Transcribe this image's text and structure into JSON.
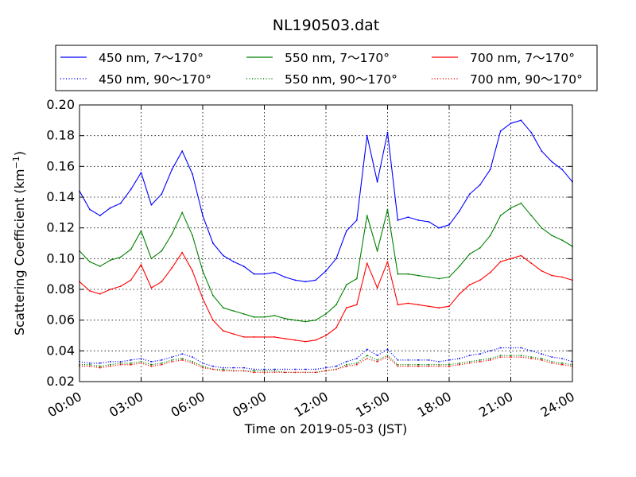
{
  "chart_data": {
    "type": "line",
    "title": "NL190503.dat",
    "xlabel": "Time on 2019-05-03 (JST)",
    "ylabel": "Scattering Coefficient (km",
    "ylabel_sup": "−1",
    "ylabel_close": ")",
    "xlim": [
      0,
      24
    ],
    "ylim": [
      0.02,
      0.2
    ],
    "x_ticks": [
      0,
      3,
      6,
      9,
      12,
      15,
      18,
      21,
      24
    ],
    "x_tick_labels": [
      "00:00",
      "03:00",
      "06:00",
      "09:00",
      "12:00",
      "15:00",
      "18:00",
      "21:00",
      "24:00"
    ],
    "y_ticks": [
      0.02,
      0.04,
      0.06,
      0.08,
      0.1,
      0.12,
      0.14,
      0.16,
      0.18,
      0.2
    ],
    "y_tick_labels": [
      "0.02",
      "0.04",
      "0.06",
      "0.08",
      "0.10",
      "0.12",
      "0.14",
      "0.16",
      "0.18",
      "0.20"
    ],
    "grid": true,
    "legend_position": "top, above plot",
    "x": [
      0.0,
      0.5,
      1.0,
      1.5,
      2.0,
      2.5,
      3.0,
      3.5,
      4.0,
      4.5,
      5.0,
      5.5,
      6.0,
      6.5,
      7.0,
      7.5,
      8.0,
      8.5,
      9.0,
      9.5,
      10.0,
      10.5,
      11.0,
      11.5,
      12.0,
      12.5,
      13.0,
      13.5,
      14.0,
      14.5,
      15.0,
      15.5,
      16.0,
      16.5,
      17.0,
      17.5,
      18.0,
      18.5,
      19.0,
      19.5,
      20.0,
      20.5,
      21.0,
      21.5,
      22.0,
      22.5,
      23.0,
      23.5,
      24.0
    ],
    "series": [
      {
        "name": "450 nm, 7～170°",
        "color": "#0000ff",
        "style": "solid",
        "values": [
          0.144,
          0.132,
          0.128,
          0.133,
          0.136,
          0.145,
          0.156,
          0.135,
          0.142,
          0.158,
          0.17,
          0.155,
          0.128,
          0.11,
          0.102,
          0.098,
          0.095,
          0.09,
          0.09,
          0.091,
          0.088,
          0.086,
          0.085,
          0.086,
          0.092,
          0.1,
          0.118,
          0.125,
          0.18,
          0.15,
          0.182,
          0.125,
          0.127,
          0.125,
          0.124,
          0.12,
          0.122,
          0.131,
          0.142,
          0.148,
          0.158,
          0.183,
          0.188,
          0.19,
          0.182,
          0.17,
          0.163,
          0.158,
          0.15
        ]
      },
      {
        "name": "450 nm, 90～170°",
        "color": "#0000ff",
        "style": "dotted",
        "values": [
          0.033,
          0.032,
          0.032,
          0.033,
          0.033,
          0.034,
          0.035,
          0.033,
          0.034,
          0.036,
          0.038,
          0.036,
          0.032,
          0.03,
          0.029,
          0.029,
          0.029,
          0.028,
          0.028,
          0.028,
          0.028,
          0.028,
          0.028,
          0.028,
          0.029,
          0.03,
          0.033,
          0.035,
          0.041,
          0.037,
          0.041,
          0.034,
          0.034,
          0.034,
          0.034,
          0.033,
          0.034,
          0.035,
          0.037,
          0.038,
          0.04,
          0.042,
          0.042,
          0.042,
          0.04,
          0.038,
          0.036,
          0.035,
          0.033
        ]
      },
      {
        "name": "550 nm, 7～170°",
        "color": "#008000",
        "style": "solid",
        "values": [
          0.105,
          0.098,
          0.095,
          0.099,
          0.101,
          0.106,
          0.118,
          0.1,
          0.105,
          0.116,
          0.13,
          0.115,
          0.092,
          0.076,
          0.068,
          0.066,
          0.064,
          0.062,
          0.062,
          0.063,
          0.061,
          0.06,
          0.059,
          0.06,
          0.064,
          0.07,
          0.083,
          0.087,
          0.128,
          0.105,
          0.132,
          0.09,
          0.09,
          0.089,
          0.088,
          0.087,
          0.088,
          0.095,
          0.103,
          0.107,
          0.115,
          0.128,
          0.133,
          0.136,
          0.128,
          0.12,
          0.115,
          0.112,
          0.108
        ]
      },
      {
        "name": "550 nm, 90～170°",
        "color": "#008000",
        "style": "dotted",
        "values": [
          0.031,
          0.031,
          0.03,
          0.031,
          0.032,
          0.032,
          0.033,
          0.031,
          0.032,
          0.034,
          0.035,
          0.033,
          0.03,
          0.028,
          0.028,
          0.027,
          0.027,
          0.027,
          0.027,
          0.027,
          0.026,
          0.026,
          0.026,
          0.026,
          0.027,
          0.028,
          0.031,
          0.032,
          0.037,
          0.034,
          0.037,
          0.031,
          0.031,
          0.031,
          0.031,
          0.031,
          0.031,
          0.032,
          0.033,
          0.034,
          0.035,
          0.037,
          0.037,
          0.037,
          0.036,
          0.035,
          0.033,
          0.032,
          0.031
        ]
      },
      {
        "name": "700 nm, 7～170°",
        "color": "#ff0000",
        "style": "solid",
        "values": [
          0.085,
          0.079,
          0.077,
          0.08,
          0.082,
          0.086,
          0.096,
          0.081,
          0.085,
          0.094,
          0.104,
          0.092,
          0.074,
          0.06,
          0.053,
          0.051,
          0.049,
          0.049,
          0.049,
          0.049,
          0.048,
          0.047,
          0.046,
          0.047,
          0.05,
          0.055,
          0.068,
          0.07,
          0.097,
          0.081,
          0.098,
          0.07,
          0.071,
          0.07,
          0.069,
          0.068,
          0.069,
          0.077,
          0.083,
          0.086,
          0.091,
          0.098,
          0.1,
          0.102,
          0.097,
          0.092,
          0.089,
          0.088,
          0.086
        ]
      },
      {
        "name": "700 nm, 90～170°",
        "color": "#ff0000",
        "style": "dotted",
        "values": [
          0.03,
          0.03,
          0.029,
          0.03,
          0.031,
          0.031,
          0.032,
          0.03,
          0.031,
          0.033,
          0.034,
          0.032,
          0.029,
          0.028,
          0.027,
          0.027,
          0.027,
          0.026,
          0.026,
          0.026,
          0.026,
          0.026,
          0.026,
          0.026,
          0.027,
          0.028,
          0.03,
          0.031,
          0.035,
          0.033,
          0.036,
          0.03,
          0.03,
          0.03,
          0.03,
          0.03,
          0.03,
          0.031,
          0.032,
          0.033,
          0.034,
          0.036,
          0.036,
          0.036,
          0.035,
          0.034,
          0.032,
          0.031,
          0.03
        ]
      }
    ]
  }
}
